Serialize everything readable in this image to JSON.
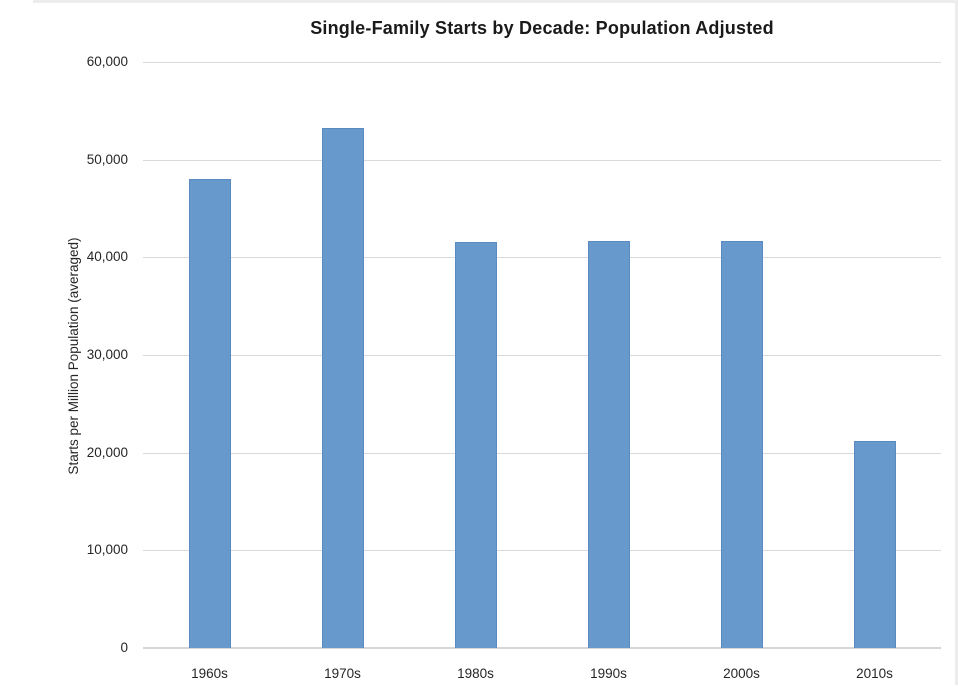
{
  "chart_data": {
    "type": "bar",
    "title": "Single-Family Starts by Decade: Population Adjusted",
    "xlabel": "",
    "ylabel": "Starts per Million Population (averaged)",
    "categories": [
      "1960s",
      "1970s",
      "1980s",
      "1990s",
      "2000s",
      "2010s"
    ],
    "values": [
      48000,
      53200,
      41600,
      41700,
      41700,
      21200
    ],
    "ylim": [
      0,
      60000
    ],
    "ytick_interval": 10000,
    "ytick_labels": [
      "0",
      "10,000",
      "20,000",
      "30,000",
      "40,000",
      "50,000",
      "60,000"
    ],
    "grid": true,
    "legend_position": "none",
    "bar_color": "#6899CD",
    "bar_border_color": "#5B8AC0",
    "gridline_color": "#D9D9D9",
    "axis_line_color": "#D6D6D6",
    "text_color": "#262626",
    "title_color": "#1A1A1A"
  }
}
